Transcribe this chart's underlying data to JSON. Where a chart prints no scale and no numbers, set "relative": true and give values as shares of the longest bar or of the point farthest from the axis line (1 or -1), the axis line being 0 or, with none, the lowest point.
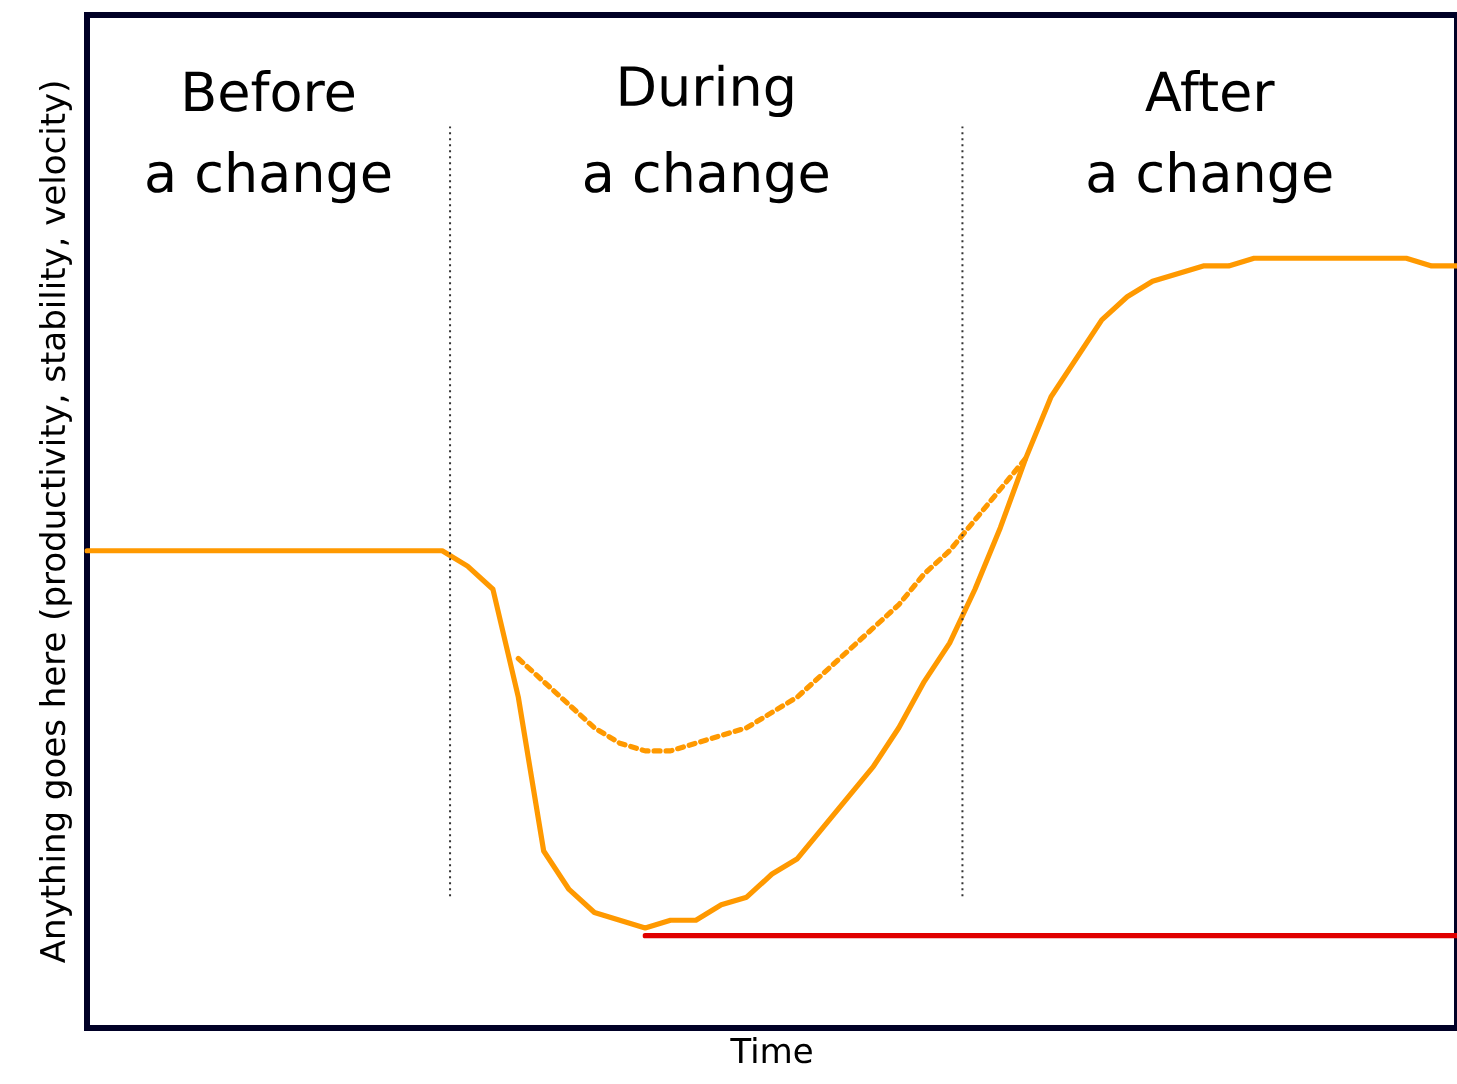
{
  "chart_data": {
    "type": "line",
    "relative": true,
    "xlabel": "Time",
    "ylabel": "Anything goes here (productivity, stability, velocity)",
    "categories": [
      null,
      null,
      null,
      null,
      null,
      null,
      null,
      null,
      null,
      null,
      null,
      null,
      null,
      null,
      null,
      null,
      null,
      null,
      null,
      null,
      null,
      null,
      null,
      null,
      null,
      null,
      null,
      null,
      null,
      null,
      null,
      null,
      null,
      null,
      null,
      null,
      null,
      null,
      null,
      null,
      null,
      null,
      null,
      null,
      null,
      null,
      null,
      null,
      null,
      null,
      null,
      null,
      null,
      null,
      null
    ],
    "series": [
      {
        "color": "#ff9900",
        "line_style": "solid",
        "values": [
          0.62,
          0.62,
          0.62,
          0.62,
          0.62,
          0.62,
          0.62,
          0.62,
          0.62,
          0.62,
          0.62,
          0.62,
          0.62,
          0.62,
          0.62,
          0.6,
          0.57,
          0.43,
          0.23,
          0.18,
          0.15,
          0.14,
          0.13,
          0.14,
          0.14,
          0.16,
          0.17,
          0.2,
          0.22,
          0.26,
          0.3,
          0.34,
          0.39,
          0.45,
          0.5,
          0.57,
          0.65,
          0.74,
          0.82,
          0.87,
          0.92,
          0.95,
          0.97,
          0.98,
          0.99,
          0.99,
          1.0,
          1.0,
          1.0,
          1.0,
          1.0,
          1.0,
          1.0,
          0.99,
          0.99
        ]
      },
      {
        "color": "#ff9900",
        "line_style": "dashed",
        "values": [
          null,
          null,
          null,
          null,
          null,
          null,
          null,
          null,
          null,
          null,
          null,
          null,
          null,
          null,
          null,
          null,
          null,
          0.48,
          0.45,
          0.42,
          0.39,
          0.37,
          0.36,
          0.36,
          0.37,
          0.38,
          0.39,
          0.41,
          0.43,
          0.46,
          0.49,
          0.52,
          0.55,
          0.59,
          0.62,
          0.66,
          0.7,
          0.74,
          null,
          null,
          null,
          null,
          null,
          null,
          null,
          null,
          null,
          null,
          null,
          null,
          null,
          null,
          null,
          null,
          null
        ]
      },
      {
        "color": "#e00000",
        "line_style": "solid",
        "values": [
          null,
          null,
          null,
          null,
          null,
          null,
          null,
          null,
          null,
          null,
          null,
          null,
          null,
          null,
          null,
          null,
          null,
          null,
          null,
          null,
          null,
          null,
          0.12,
          0.12,
          0.12,
          0.12,
          0.12,
          0.12,
          0.12,
          0.12,
          0.12,
          0.12,
          0.12,
          0.12,
          0.12,
          0.12,
          0.12,
          0.12,
          0.12,
          0.12,
          0.12,
          0.12,
          0.12,
          0.12,
          0.12,
          0.12,
          0.12,
          0.12,
          0.12,
          0.12,
          0.12,
          0.12,
          0.12,
          0.12,
          0.12
        ]
      }
    ],
    "annotations": [
      "Before",
      "a change",
      "During",
      "a change",
      "After",
      "a change"
    ],
    "tick_labels": false
  }
}
